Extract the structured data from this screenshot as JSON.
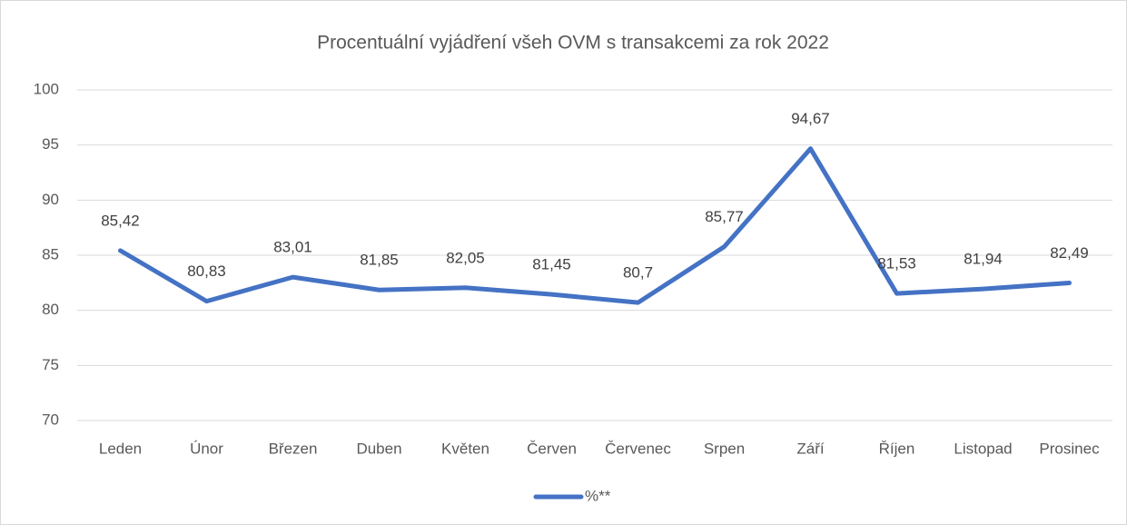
{
  "chart_data": {
    "type": "line",
    "title": "Procentuální vyjádření všeh OVM s transakcemi za rok 2022",
    "categories": [
      "Leden",
      "Únor",
      "Březen",
      "Duben",
      "Květen",
      "Červen",
      "Červenec",
      "Srpen",
      "Září",
      "Říjen",
      "Listopad",
      "Prosinec"
    ],
    "series": [
      {
        "name": "%**",
        "color": "#4472c4",
        "values": [
          85.42,
          80.83,
          83.01,
          81.85,
          82.05,
          81.45,
          80.7,
          85.77,
          94.67,
          81.53,
          81.94,
          82.49
        ],
        "value_labels": [
          "85,42",
          "80,83",
          "83,01",
          "81,85",
          "82,05",
          "81,45",
          "80,7",
          "85,77",
          "94,67",
          "81,53",
          "81,94",
          "82,49"
        ]
      }
    ],
    "ylim": [
      70,
      100
    ],
    "yticks": [
      70,
      75,
      80,
      85,
      90,
      95,
      100
    ],
    "grid": true,
    "legend": "bottom"
  }
}
